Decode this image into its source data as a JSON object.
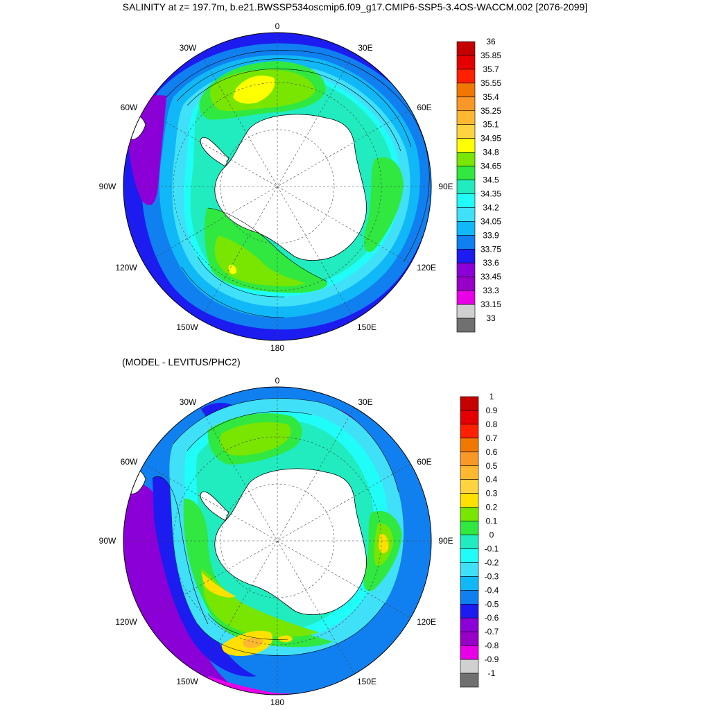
{
  "title": "SALINITY at z= 197.7m, b.e21.BWSSP534oscmip6.f09_g17.CMIP6-SSP5-3.4OS-WACCM.002 [2076-2099]",
  "subtitle": "(MODEL - LEVITUS/PHC2)",
  "longitude_labels": {
    "top": "0",
    "bottom": "180",
    "upper_left": "30W",
    "upper_right": "30E",
    "left_upper": "60W",
    "right_upper": "60E",
    "left": "90W",
    "right": "90E",
    "left_lower": "120W",
    "right_lower": "120E",
    "lower_left": "150W",
    "lower_right": "150E"
  },
  "colorbar_top": {
    "ticks": [
      "36",
      "35.85",
      "35.7",
      "35.55",
      "35.4",
      "35.25",
      "35.1",
      "34.95",
      "34.8",
      "34.65",
      "34.5",
      "34.35",
      "34.2",
      "34.05",
      "33.9",
      "33.75",
      "33.6",
      "33.45",
      "33.3",
      "33.15",
      "33"
    ],
    "colors": [
      "#c40000",
      "#e40000",
      "#ff2000",
      "#f07800",
      "#f89828",
      "#ffb830",
      "#ffd440",
      "#ffff00",
      "#78e600",
      "#30e840",
      "#20ecc0",
      "#20fcf8",
      "#40e0f8",
      "#10b8f8",
      "#1080f0",
      "#1c1cf0",
      "#8c00d8",
      "#9800c8",
      "#e800e8",
      "#d0d0d0",
      "#707070"
    ]
  },
  "colorbar_bottom": {
    "ticks": [
      "1",
      "0.9",
      "0.8",
      "0.7",
      "0.6",
      "0.5",
      "0.4",
      "0.3",
      "0.2",
      "0.1",
      "0",
      "-0.1",
      "-0.2",
      "-0.3",
      "-0.4",
      "-0.5",
      "-0.6",
      "-0.7",
      "-0.8",
      "-0.9",
      "-1"
    ],
    "colors": [
      "#c40000",
      "#e40000",
      "#ff2000",
      "#f07800",
      "#f89828",
      "#ffb830",
      "#ffd440",
      "#ffe000",
      "#78e600",
      "#30e840",
      "#20ecc0",
      "#20fcf8",
      "#40e0f8",
      "#10b8f8",
      "#1080f0",
      "#1c1cf0",
      "#8c00d8",
      "#9800c8",
      "#e800e8",
      "#d0d0d0",
      "#707070"
    ]
  }
}
